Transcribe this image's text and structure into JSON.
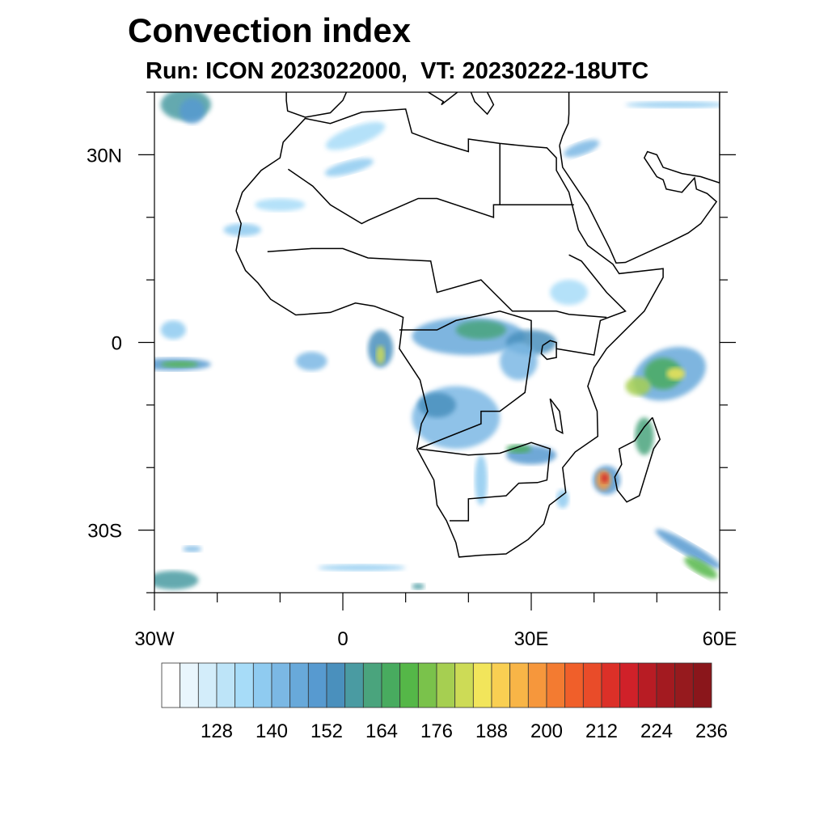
{
  "title": "Convection index",
  "subtitle": "Run: ICON 2023022000,  VT: 20230222-18UTC",
  "map": {
    "projection": "equirectangular",
    "lon_range": [
      -30,
      60
    ],
    "lat_range": [
      -40,
      40
    ],
    "lon_ticks": [
      {
        "value": -30,
        "label": "30W"
      },
      {
        "value": 0,
        "label": "0"
      },
      {
        "value": 30,
        "label": "30E"
      },
      {
        "value": 60,
        "label": "60E"
      }
    ],
    "lat_ticks": [
      {
        "value": 30,
        "label": "30N"
      },
      {
        "value": 0,
        "label": "0"
      },
      {
        "value": -30,
        "label": "30S"
      }
    ]
  },
  "colorbar": {
    "labels": [
      "128",
      "140",
      "152",
      "164",
      "176",
      "188",
      "200",
      "212",
      "224",
      "236"
    ],
    "colors": [
      "#ffffff",
      "#e9f6fd",
      "#d3edfa",
      "#bde4f8",
      "#a7dcf8",
      "#8fcbf0",
      "#7bb8e4",
      "#68a9da",
      "#579ad0",
      "#4a90bd",
      "#4a9ba2",
      "#4aa47d",
      "#48ab5f",
      "#55b748",
      "#7ac24b",
      "#a6cf51",
      "#cddb56",
      "#f2e55b",
      "#f9cf52",
      "#f8b547",
      "#f6973c",
      "#f37b31",
      "#f05f2a",
      "#e94c29",
      "#dc3028",
      "#d02129",
      "#b81c24",
      "#a31a20",
      "#961a1e",
      "#8a161b"
    ]
  }
}
